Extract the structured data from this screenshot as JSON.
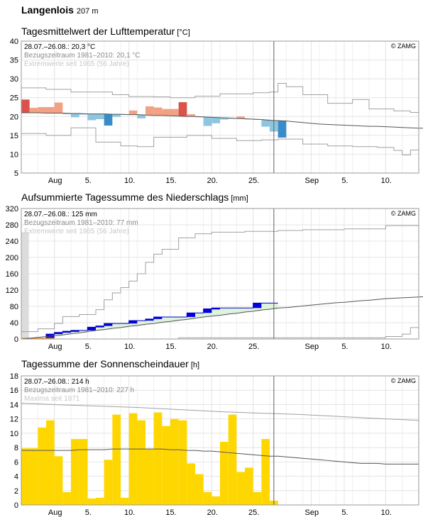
{
  "station": {
    "name": "Langenlois",
    "altitude": "207 m"
  },
  "copyright": "© ZAMG",
  "x_ticks": [
    "Aug",
    "5.",
    "10.",
    "15.",
    "20.",
    "25.",
    "Sep",
    "5.",
    "10."
  ],
  "panels": [
    {
      "title": "Tagesmittelwert der Lufttemperatur",
      "unit": "[°C]",
      "info": [
        "28.07.–26.08.: 20,3 °C",
        "Bezugszeitraum 1981–2010: 20,1 °C",
        "Extremwerte seit 1965 (56 Jahre)"
      ]
    },
    {
      "title": "Aufsummierte Tagessumme des Niederschlags",
      "unit": "[mm]",
      "info": [
        "28.07.–26.08.: 125 mm",
        "Bezugszeitraum 1981–2010: 77 mm",
        "Extremwerte seit 1965 (56 Jahre)"
      ]
    },
    {
      "title": "Tagessumme der Sonnenscheindauer",
      "unit": "[h]",
      "info": [
        "28.07.–26.08.: 214 h",
        "Bezugszeitraum 1981–2010: 227 h",
        "Maxima seit 1971"
      ]
    }
  ],
  "colors": {
    "grid": "#e4e4e4",
    "frame": "#9a9a9a",
    "today_line": "#606060",
    "warm": "#f2a184",
    "warm_dark": "#d9534a",
    "cool": "#8ec6e0",
    "cool_dark": "#3a8cc8",
    "precip_bar": "#0000e0",
    "precip_fill": "#dff2df",
    "precip_line": "#0000c0",
    "sun_bar": "#ffd700",
    "climate_line": "#555555",
    "extreme_line": "#a0a0a0"
  },
  "chart_data": [
    {
      "type": "bar",
      "title": "Tagesmittelwert der Lufttemperatur",
      "ylabel": "°C",
      "ylim": [
        5,
        40
      ],
      "y_ticks": [
        5,
        10,
        15,
        20,
        25,
        30,
        35,
        40
      ],
      "x_range": [
        -4,
        44
      ],
      "x_note": "day index 0 = 1 Aug",
      "current_until_day": 26,
      "daily_mean": [
        24.5,
        22.3,
        22.5,
        22.5,
        23.7,
        20.6,
        19.8,
        20.5,
        19.0,
        19.3,
        17.6,
        19.9,
        20.5,
        21.6,
        19.5,
        22.7,
        22.4,
        22.0,
        22.0,
        23.8,
        20.6,
        19.8,
        17.5,
        18.2,
        19.2,
        19.4,
        20.0,
        19.4,
        19.2,
        17.3,
        16.0,
        14.4
      ],
      "climate_mean": [
        21.0,
        21.0,
        21.0,
        20.9,
        20.9,
        20.9,
        20.8,
        20.8,
        20.7,
        20.7,
        20.7,
        20.6,
        20.6,
        20.5,
        20.5,
        20.4,
        20.3,
        20.3,
        20.2,
        20.1,
        20.0,
        20.0,
        19.9,
        19.8,
        19.7,
        19.6,
        19.5,
        19.4,
        19.3,
        19.2,
        19.0,
        18.9
      ],
      "climate_mean_future": [
        18.8,
        18.6,
        18.4,
        18.2,
        18.0,
        17.9,
        17.8,
        17.7,
        17.6,
        17.5,
        17.4,
        17.4,
        17.3,
        17.2,
        17.1,
        17.0,
        16.9,
        16.9
      ],
      "extreme_max": [
        [
          -4,
          27.6
        ],
        [
          -1,
          27.2
        ],
        [
          2,
          26.5
        ],
        [
          7,
          25.8
        ],
        [
          9,
          25.3
        ],
        [
          12,
          25.2
        ],
        [
          14,
          25.0
        ],
        [
          17,
          25.4
        ],
        [
          20,
          26.0
        ],
        [
          24,
          26.3
        ],
        [
          26,
          26.5
        ],
        [
          27,
          28.8
        ],
        [
          28,
          27.9
        ],
        [
          30,
          25.8
        ],
        [
          33,
          23.5
        ],
        [
          36,
          24.5
        ],
        [
          38,
          22.0
        ],
        [
          41,
          21.5
        ],
        [
          43,
          21.1
        ],
        [
          44,
          21.1
        ]
      ],
      "extreme_min": [
        [
          -4,
          15.5
        ],
        [
          -1,
          15.0
        ],
        [
          2,
          17.0
        ],
        [
          5,
          13.2
        ],
        [
          8,
          12.2
        ],
        [
          10,
          12.0
        ],
        [
          12,
          14.5
        ],
        [
          16,
          15.0
        ],
        [
          19,
          14.2
        ],
        [
          22,
          13.6
        ],
        [
          25,
          13.8
        ],
        [
          27,
          14.0
        ],
        [
          30,
          12.7
        ],
        [
          33,
          12.2
        ],
        [
          36,
          12.0
        ],
        [
          39,
          11.8
        ],
        [
          41,
          11.0
        ],
        [
          42,
          9.8
        ],
        [
          43,
          11.1
        ],
        [
          44,
          11.1
        ]
      ]
    },
    {
      "type": "area",
      "title": "Aufsummierte Tagessumme des Niederschlags",
      "ylabel": "mm",
      "ylim": [
        0,
        320
      ],
      "y_ticks": [
        0,
        40,
        80,
        120,
        160,
        200,
        240,
        280,
        320
      ],
      "x_range": [
        -4,
        44
      ],
      "daily_precip": [
        0,
        0,
        0,
        12,
        4,
        3,
        2,
        0,
        8,
        3,
        6,
        0,
        0,
        7,
        0,
        4,
        5,
        0,
        0,
        0,
        10,
        0,
        10,
        2,
        0,
        0,
        0,
        0,
        12,
        0,
        0,
        0,
        0,
        0,
        0,
        0,
        2
      ],
      "precip_start_day": -4,
      "climate_cumsum": [
        0,
        2,
        4,
        6,
        8,
        10,
        13,
        15,
        18,
        21,
        23,
        26,
        28,
        31,
        33,
        36,
        38,
        41,
        43,
        46,
        48,
        51,
        54,
        56,
        58,
        61,
        63,
        66,
        68,
        71,
        73,
        76,
        77
      ],
      "climate_cumsum_future": [
        79,
        81,
        83,
        85,
        87,
        89,
        90,
        92,
        94,
        95,
        97,
        99,
        100,
        101,
        102,
        103,
        104,
        105
      ],
      "extreme_max": [
        [
          -4,
          18
        ],
        [
          -2,
          25
        ],
        [
          0,
          38
        ],
        [
          1,
          55
        ],
        [
          3,
          60
        ],
        [
          5,
          72
        ],
        [
          6,
          96
        ],
        [
          7,
          113
        ],
        [
          8,
          126
        ],
        [
          9,
          142
        ],
        [
          10,
          160
        ],
        [
          11,
          188
        ],
        [
          12,
          208
        ],
        [
          13,
          220
        ],
        [
          15,
          248
        ],
        [
          17,
          258
        ],
        [
          19,
          262
        ],
        [
          23,
          264
        ],
        [
          27,
          266
        ],
        [
          30,
          268
        ],
        [
          35,
          270
        ],
        [
          40,
          278
        ],
        [
          44,
          282
        ]
      ],
      "extreme_min": [
        [
          -4,
          0
        ],
        [
          5,
          0
        ],
        [
          15,
          3
        ],
        [
          25,
          3
        ],
        [
          40,
          6
        ],
        [
          42,
          12
        ],
        [
          43,
          28
        ],
        [
          44,
          30
        ]
      ],
      "total": 125,
      "climate_total": 77
    },
    {
      "type": "bar",
      "title": "Tagessumme der Sonnenscheindauer",
      "ylabel": "h",
      "ylim": [
        0,
        18
      ],
      "y_ticks": [
        0,
        2,
        4,
        6,
        8,
        10,
        12,
        14,
        16,
        18
      ],
      "x_range": [
        -4,
        44
      ],
      "daily_sun": [
        7.9,
        10.8,
        11.8,
        6.8,
        1.8,
        9.2,
        9.2,
        0.9,
        1.0,
        6.3,
        12.6,
        1.0,
        12.8,
        11.8,
        7.8,
        12.9,
        11.0,
        12.0,
        11.8,
        5.8,
        4.3,
        1.8,
        1.2,
        8.8,
        12.6,
        4.6,
        5.2,
        1.8,
        9.2,
        0.6
      ],
      "sun_start_day": -3,
      "climate_mean": [
        7.6,
        7.6,
        7.6,
        7.6,
        7.6,
        7.6,
        7.6,
        7.7,
        7.7,
        7.7,
        7.7,
        7.8,
        7.8,
        7.8,
        7.8,
        7.8,
        7.8,
        7.8,
        7.7,
        7.7,
        7.6,
        7.6,
        7.5,
        7.5,
        7.4,
        7.3,
        7.2,
        7.1,
        7.0,
        6.9,
        6.8
      ],
      "climate_mean_future": [
        6.8,
        6.7,
        6.6,
        6.5,
        6.4,
        6.3,
        6.2,
        6.1,
        6.0,
        5.9,
        5.8,
        5.8,
        5.8,
        5.7,
        5.7,
        5.7,
        5.7,
        5.7
      ],
      "maxima": [
        [
          -4,
          14.2
        ],
        [
          0,
          14.0
        ],
        [
          5,
          13.8
        ],
        [
          10,
          13.6
        ],
        [
          15,
          13.3
        ],
        [
          20,
          13.0
        ],
        [
          25,
          12.8
        ],
        [
          30,
          12.6
        ],
        [
          35,
          12.3
        ],
        [
          40,
          12.0
        ],
        [
          44,
          11.8
        ]
      ]
    }
  ]
}
